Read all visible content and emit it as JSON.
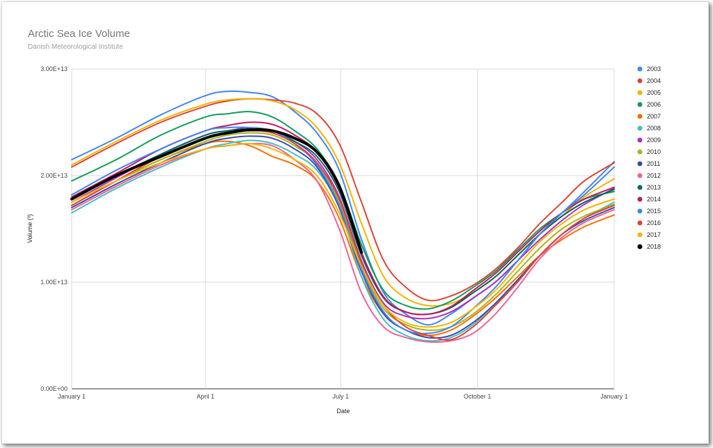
{
  "chart_data": {
    "type": "line",
    "title": "Arctic Sea Ice Volume",
    "subtitle": "Danish Meteorological Institute",
    "xlabel": "Date",
    "ylabel": "Volume (³)",
    "x_ticks": [
      "January 1",
      "April 1",
      "July 1",
      "October 1",
      "January 1"
    ],
    "x_tick_days": [
      0,
      90,
      181,
      273,
      365
    ],
    "xlim_days": [
      0,
      365
    ],
    "y_ticks": [
      "0.00E+00",
      "1.00E+13",
      "2.00E+13",
      "3.00E+13"
    ],
    "y_tick_values": [
      0,
      10000000000000.0,
      20000000000000.0,
      30000000000000.0
    ],
    "ylim": [
      0,
      30000000000000.0
    ],
    "grid": true,
    "legend_position": "right",
    "x_days": [
      0,
      30,
      60,
      90,
      105,
      120,
      135,
      150,
      165,
      180,
      195,
      210,
      225,
      240,
      255,
      270,
      285,
      300,
      315,
      330,
      345,
      365
    ],
    "series": [
      {
        "name": "2003",
        "color": "#4285f4",
        "values": [
          21500000000000.0,
          23500000000000.0,
          25700000000000.0,
          27500000000000.0,
          27900000000000.0,
          27800000000000.0,
          27400000000000.0,
          26000000000000.0,
          24000000000000.0,
          20500000000000.0,
          14000000000000.0,
          9000000000000.0,
          7000000000000.0,
          6000000000000.0,
          7000000000000.0,
          8500000000000.0,
          10000000000000.0,
          12000000000000.0,
          14500000000000.0,
          16500000000000.0,
          18500000000000.0,
          21300000000000.0
        ]
      },
      {
        "name": "2004",
        "color": "#db4437",
        "values": [
          20800000000000.0,
          23000000000000.0,
          25000000000000.0,
          26500000000000.0,
          27000000000000.0,
          27200000000000.0,
          27100000000000.0,
          26800000000000.0,
          25800000000000.0,
          23000000000000.0,
          17500000000000.0,
          12000000000000.0,
          9500000000000.0,
          8300000000000.0,
          8700000000000.0,
          9700000000000.0,
          11200000000000.0,
          13200000000000.0,
          15500000000000.0,
          17500000000000.0,
          19500000000000.0,
          21200000000000.0
        ]
      },
      {
        "name": "2005",
        "color": "#f4b400",
        "values": [
          21000000000000.0,
          23200000000000.0,
          25200000000000.0,
          26700000000000.0,
          27100000000000.0,
          27200000000000.0,
          27000000000000.0,
          26200000000000.0,
          24500000000000.0,
          21200000000000.0,
          15500000000000.0,
          10500000000000.0,
          8500000000000.0,
          7800000000000.0,
          8000000000000.0,
          9000000000000.0,
          10500000000000.0,
          12500000000000.0,
          14500000000000.0,
          16200000000000.0,
          18000000000000.0,
          19700000000000.0
        ]
      },
      {
        "name": "2006",
        "color": "#0f9d58",
        "values": [
          19500000000000.0,
          21500000000000.0,
          23800000000000.0,
          25500000000000.0,
          25800000000000.0,
          26000000000000.0,
          25500000000000.0,
          24200000000000.0,
          22500000000000.0,
          19200000000000.0,
          13500000000000.0,
          9200000000000.0,
          7800000000000.0,
          7500000000000.0,
          8200000000000.0,
          9500000000000.0,
          11000000000000.0,
          13000000000000.0,
          15000000000000.0,
          16500000000000.0,
          17800000000000.0,
          18500000000000.0
        ]
      },
      {
        "name": "2007",
        "color": "#ff6d00",
        "values": [
          17200000000000.0,
          19500000000000.0,
          21500000000000.0,
          23000000000000.0,
          23200000000000.0,
          22800000000000.0,
          21800000000000.0,
          21000000000000.0,
          19500000000000.0,
          16000000000000.0,
          10500000000000.0,
          7000000000000.0,
          5500000000000.0,
          5000000000000.0,
          5500000000000.0,
          6800000000000.0,
          8500000000000.0,
          10500000000000.0,
          12500000000000.0,
          14000000000000.0,
          15200000000000.0,
          16300000000000.0
        ]
      },
      {
        "name": "2008",
        "color": "#46bdc6",
        "values": [
          16500000000000.0,
          18800000000000.0,
          20800000000000.0,
          22500000000000.0,
          23000000000000.0,
          23300000000000.0,
          23000000000000.0,
          22000000000000.0,
          20500000000000.0,
          17000000000000.0,
          10500000000000.0,
          6500000000000.0,
          5000000000000.0,
          4500000000000.0,
          4800000000000.0,
          6000000000000.0,
          8000000000000.0,
          10200000000000.0,
          12500000000000.0,
          14500000000000.0,
          16000000000000.0,
          17500000000000.0
        ]
      },
      {
        "name": "2009",
        "color": "#ab30c4",
        "values": [
          17500000000000.0,
          19800000000000.0,
          22000000000000.0,
          23800000000000.0,
          24200000000000.0,
          24500000000000.0,
          24200000000000.0,
          23200000000000.0,
          21500000000000.0,
          18000000000000.0,
          12000000000000.0,
          8000000000000.0,
          6800000000000.0,
          6600000000000.0,
          7200000000000.0,
          8500000000000.0,
          10000000000000.0,
          12000000000000.0,
          14000000000000.0,
          15800000000000.0,
          17300000000000.0,
          18800000000000.0
        ]
      },
      {
        "name": "2010",
        "color": "#abb41b",
        "values": [
          17200000000000.0,
          19500000000000.0,
          21500000000000.0,
          23200000000000.0,
          23800000000000.0,
          24000000000000.0,
          23800000000000.0,
          22800000000000.0,
          21200000000000.0,
          17500000000000.0,
          11500000000000.0,
          7500000000000.0,
          6000000000000.0,
          5500000000000.0,
          5800000000000.0,
          7000000000000.0,
          8800000000000.0,
          11000000000000.0,
          13200000000000.0,
          15000000000000.0,
          16200000000000.0,
          17300000000000.0
        ]
      },
      {
        "name": "2011",
        "color": "#3949ab",
        "values": [
          17000000000000.0,
          19200000000000.0,
          21200000000000.0,
          23000000000000.0,
          23500000000000.0,
          23700000000000.0,
          23500000000000.0,
          22500000000000.0,
          20800000000000.0,
          17000000000000.0,
          11000000000000.0,
          7000000000000.0,
          5500000000000.0,
          4800000000000.0,
          5000000000000.0,
          6200000000000.0,
          8000000000000.0,
          10200000000000.0,
          12500000000000.0,
          14500000000000.0,
          15800000000000.0,
          17000000000000.0
        ]
      },
      {
        "name": "2012",
        "color": "#f06292",
        "values": [
          16800000000000.0,
          19000000000000.0,
          21000000000000.0,
          22500000000000.0,
          22800000000000.0,
          23000000000000.0,
          22800000000000.0,
          21500000000000.0,
          19500000000000.0,
          15000000000000.0,
          9000000000000.0,
          5800000000000.0,
          4800000000000.0,
          4400000000000.0,
          4500000000000.0,
          5200000000000.0,
          7000000000000.0,
          9500000000000.0,
          12200000000000.0,
          14200000000000.0,
          15600000000000.0,
          16800000000000.0
        ]
      },
      {
        "name": "2013",
        "color": "#00695c",
        "values": [
          17800000000000.0,
          20000000000000.0,
          22000000000000.0,
          23800000000000.0,
          24200000000000.0,
          24400000000000.0,
          24200000000000.0,
          23200000000000.0,
          21800000000000.0,
          18500000000000.0,
          12500000000000.0,
          8500000000000.0,
          7200000000000.0,
          7000000000000.0,
          7600000000000.0,
          9000000000000.0,
          10500000000000.0,
          12500000000000.0,
          14500000000000.0,
          16200000000000.0,
          17500000000000.0,
          18700000000000.0
        ]
      },
      {
        "name": "2014",
        "color": "#c2185b",
        "values": [
          18000000000000.0,
          20200000000000.0,
          22500000000000.0,
          24200000000000.0,
          24700000000000.0,
          25000000000000.0,
          24800000000000.0,
          23800000000000.0,
          22200000000000.0,
          18800000000000.0,
          12800000000000.0,
          8600000000000.0,
          7200000000000.0,
          7000000000000.0,
          7700000000000.0,
          9200000000000.0,
          10800000000000.0,
          12800000000000.0,
          14800000000000.0,
          16500000000000.0,
          17800000000000.0,
          18900000000000.0
        ]
      },
      {
        "name": "2015",
        "color": "#4285f4",
        "values": [
          18200000000000.0,
          20500000000000.0,
          22500000000000.0,
          24200000000000.0,
          24500000000000.0,
          24500000000000.0,
          24200000000000.0,
          23000000000000.0,
          21000000000000.0,
          17200000000000.0,
          11200000000000.0,
          7200000000000.0,
          5500000000000.0,
          5200000000000.0,
          5800000000000.0,
          7500000000000.0,
          9500000000000.0,
          12000000000000.0,
          14500000000000.0,
          16500000000000.0,
          18200000000000.0,
          20800000000000.0
        ]
      },
      {
        "name": "2016",
        "color": "#db4437",
        "values": [
          17200000000000.0,
          19500000000000.0,
          21800000000000.0,
          23500000000000.0,
          24000000000000.0,
          24200000000000.0,
          24000000000000.0,
          23000000000000.0,
          21200000000000.0,
          17800000000000.0,
          11800000000000.0,
          7800000000000.0,
          5800000000000.0,
          5000000000000.0,
          4600000000000.0,
          5800000000000.0,
          7800000000000.0,
          10000000000000.0,
          12500000000000.0,
          14500000000000.0,
          16000000000000.0,
          17200000000000.0
        ]
      },
      {
        "name": "2017",
        "color": "#f4b400",
        "values": [
          17500000000000.0,
          19500000000000.0,
          21200000000000.0,
          22500000000000.0,
          22800000000000.0,
          23000000000000.0,
          22500000000000.0,
          21500000000000.0,
          20000000000000.0,
          16500000000000.0,
          11500000000000.0,
          7800000000000.0,
          6200000000000.0,
          5800000000000.0,
          6200000000000.0,
          7500000000000.0,
          9200000000000.0,
          11500000000000.0,
          13800000000000.0,
          15500000000000.0,
          16800000000000.0,
          17800000000000.0
        ]
      },
      {
        "name": "2018",
        "color": "#000000",
        "values": [
          17800000000000.0,
          20000000000000.0,
          21800000000000.0,
          23500000000000.0,
          24000000000000.0,
          24300000000000.0,
          24200000000000.0,
          23500000000000.0,
          22200000000000.0,
          19000000000000.0,
          12800000000000.0
        ]
      }
    ]
  }
}
